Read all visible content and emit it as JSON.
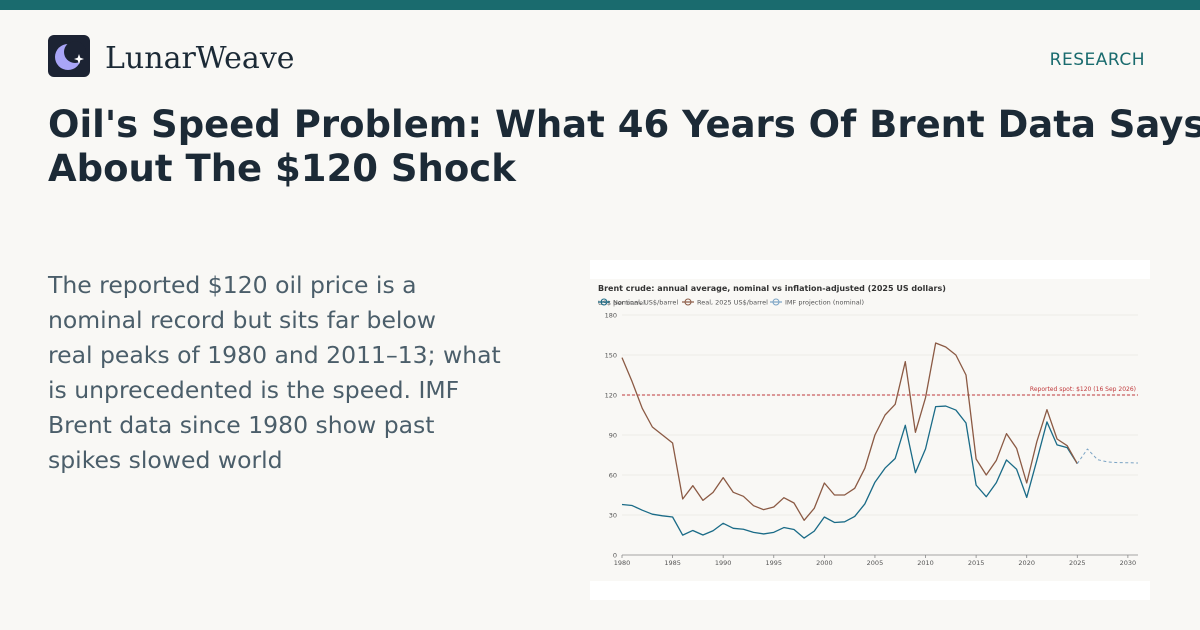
{
  "brand": {
    "name": "LunarWeave",
    "logo_icon": "crescent-moon-star-icon",
    "section_link": "RESEARCH"
  },
  "colors": {
    "accent": "#1a6b6e",
    "heading": "#1c2a36",
    "body": "#4b5e6a",
    "nominal": "#1a6b87",
    "real": "#8b5a44",
    "projection": "#7aa3c4",
    "reference": "#c0393b"
  },
  "article": {
    "headline_lines": [
      "Oil's Speed Problem: What 46 Years Of Brent Data Says",
      "About The $120 Shock"
    ],
    "summary_lines": [
      "The reported $120 oil price is a",
      "nominal record but sits far below",
      "real peaks of 1980 and 2011–13; what",
      "is unprecedented is the speed. IMF",
      "Brent data since 1980 show past",
      "spikes slowed world"
    ]
  },
  "chart_data": {
    "type": "line",
    "title": "Brent crude: annual average, nominal vs inflation-adjusted (2025 US dollars)",
    "unit_label": "US$ per barrel",
    "legend": {
      "placement": "top-left",
      "entries": [
        "Nominal, US$/barrel",
        "Real, 2025 US$/barrel",
        "IMF projection (nominal)"
      ]
    },
    "xlim": [
      1980,
      2031
    ],
    "ylim": [
      0,
      180
    ],
    "x_ticks": [
      1980,
      1985,
      1990,
      1995,
      2000,
      2005,
      2010,
      2015,
      2020,
      2025,
      2030
    ],
    "y_ticks": [
      0,
      30,
      60,
      90,
      120,
      150,
      180
    ],
    "grid": "horizontal",
    "series": [
      {
        "name": "Nominal, US$/barrel",
        "style": "solid",
        "x": [
          1980,
          1981,
          1982,
          1983,
          1984,
          1985,
          1986,
          1987,
          1988,
          1989,
          1990,
          1991,
          1992,
          1993,
          1994,
          1995,
          1996,
          1997,
          1998,
          1999,
          2000,
          2001,
          2002,
          2003,
          2004,
          2005,
          2006,
          2007,
          2008,
          2009,
          2010,
          2011,
          2012,
          2013,
          2014,
          2015,
          2016,
          2017,
          2018,
          2019,
          2020,
          2021,
          2022,
          2023,
          2024,
          2025
        ],
        "y": [
          37.9,
          37.1,
          33.6,
          30.6,
          29.4,
          28.5,
          14.9,
          18.4,
          15.0,
          18.2,
          23.8,
          20.0,
          19.3,
          17.0,
          15.8,
          17.0,
          20.6,
          19.1,
          12.7,
          17.9,
          28.5,
          24.4,
          24.9,
          28.9,
          38.3,
          54.6,
          65.2,
          72.4,
          97.3,
          61.7,
          79.6,
          111.3,
          111.7,
          108.7,
          99.0,
          52.4,
          43.7,
          54.3,
          71.3,
          64.3,
          43.2,
          70.9,
          99.8,
          82.6,
          80.5,
          68.5
        ]
      },
      {
        "name": "Real, 2025 US$/barrel",
        "style": "solid",
        "x": [
          1980,
          1981,
          1982,
          1983,
          1984,
          1985,
          1986,
          1987,
          1988,
          1989,
          1990,
          1991,
          1992,
          1993,
          1994,
          1995,
          1996,
          1997,
          1998,
          1999,
          2000,
          2001,
          2002,
          2003,
          2004,
          2005,
          2006,
          2007,
          2008,
          2009,
          2010,
          2011,
          2012,
          2013,
          2014,
          2015,
          2016,
          2017,
          2018,
          2019,
          2020,
          2021,
          2022,
          2023,
          2024,
          2025
        ],
        "y": [
          148,
          130,
          110,
          96,
          90,
          84,
          42,
          52,
          41,
          47,
          58,
          47,
          44,
          37,
          34,
          36,
          43,
          39,
          26,
          35,
          54,
          45,
          45,
          50,
          65,
          90,
          105,
          113,
          145,
          92,
          118,
          159,
          156,
          150,
          135,
          72,
          60,
          71,
          91,
          80,
          54,
          85,
          109,
          87,
          82,
          68.5
        ]
      },
      {
        "name": "IMF projection (nominal)",
        "style": "dashed",
        "x": [
          2025,
          2026,
          2027,
          2028,
          2029,
          2030,
          2031
        ],
        "y": [
          68.5,
          79.5,
          71.5,
          69.8,
          69.3,
          69.2,
          69.0
        ]
      }
    ],
    "reference_line": {
      "y": 120,
      "label": "Reported spot: $120 (16 Sep 2026)"
    }
  }
}
